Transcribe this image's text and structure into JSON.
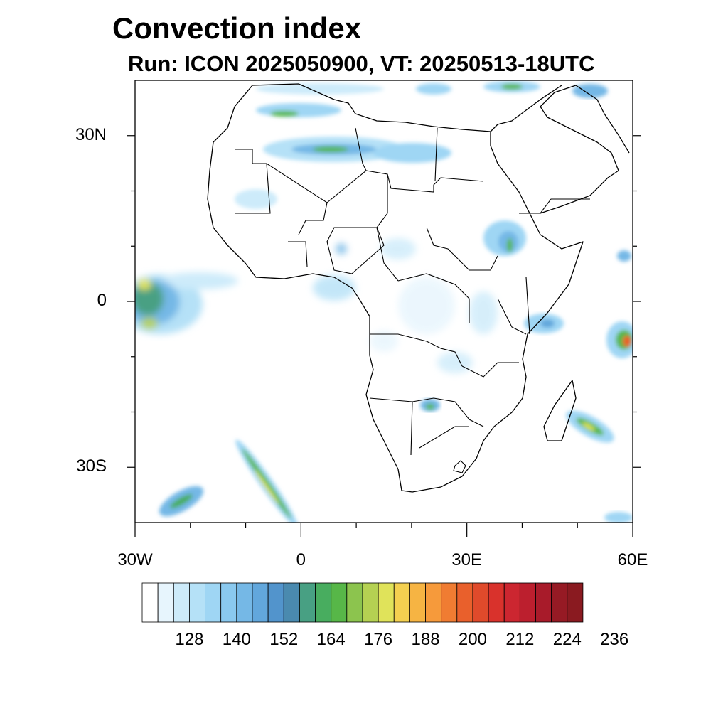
{
  "title": "Convection index",
  "subtitle": "Run: ICON 2025050900,  VT: 20250513-18UTC",
  "map": {
    "lon_range": [
      -30,
      60
    ],
    "lat_range": [
      -40,
      40
    ],
    "y_ticks": [
      {
        "lat": 30,
        "label": "30N"
      },
      {
        "lat": 0,
        "label": "0"
      },
      {
        "lat": -30,
        "label": "30S"
      }
    ],
    "x_ticks": [
      {
        "lon": -30,
        "label": "30W"
      },
      {
        "lon": 0,
        "label": "0"
      },
      {
        "lon": 30,
        "label": "30E"
      },
      {
        "lon": 60,
        "label": "60E"
      }
    ],
    "coastline_color": "#000000"
  },
  "colorbar": {
    "labels": [
      "128",
      "140",
      "152",
      "164",
      "176",
      "188",
      "200",
      "212",
      "224",
      "236"
    ],
    "colors": [
      "#ffffff",
      "#e7f5fd",
      "#cdebfa",
      "#b5e1f7",
      "#9fd6f4",
      "#8ac9ef",
      "#75b8e6",
      "#62a7dc",
      "#5294cc",
      "#4a8aaf",
      "#48a083",
      "#48ad5f",
      "#57b748",
      "#8cc44e",
      "#b5d152",
      "#e0e35a",
      "#f4d050",
      "#f6b443",
      "#f69a3b",
      "#f07c32",
      "#e9602c",
      "#e04a2b",
      "#d9322c",
      "#cc2630",
      "#bc1f2e",
      "#a81b2a",
      "#961a24",
      "#8a1a20"
    ]
  }
}
